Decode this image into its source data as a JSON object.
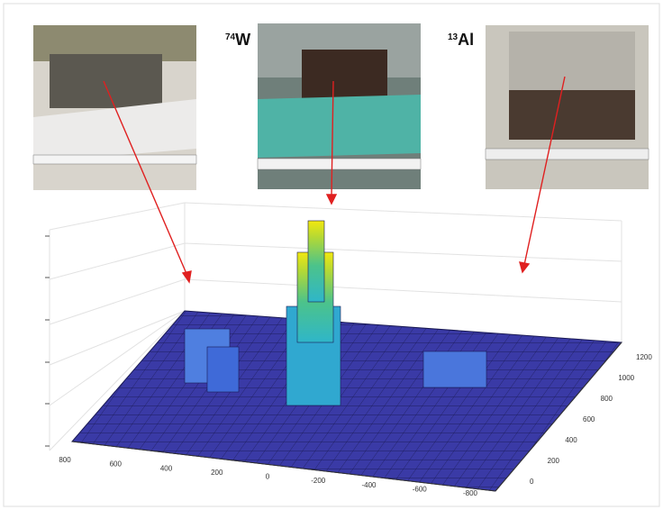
{
  "labels": [
    {
      "superscript": "74",
      "symbol": "W"
    },
    {
      "superscript": "13",
      "symbol": "Al"
    }
  ],
  "axes": {
    "front_ticks": [
      "800",
      "600",
      "400",
      "200",
      "0",
      "-200",
      "-400",
      "-600",
      "-800"
    ],
    "side_ticks": [
      "0",
      "200",
      "400",
      "600",
      "800",
      "1000",
      "1200"
    ]
  }
}
